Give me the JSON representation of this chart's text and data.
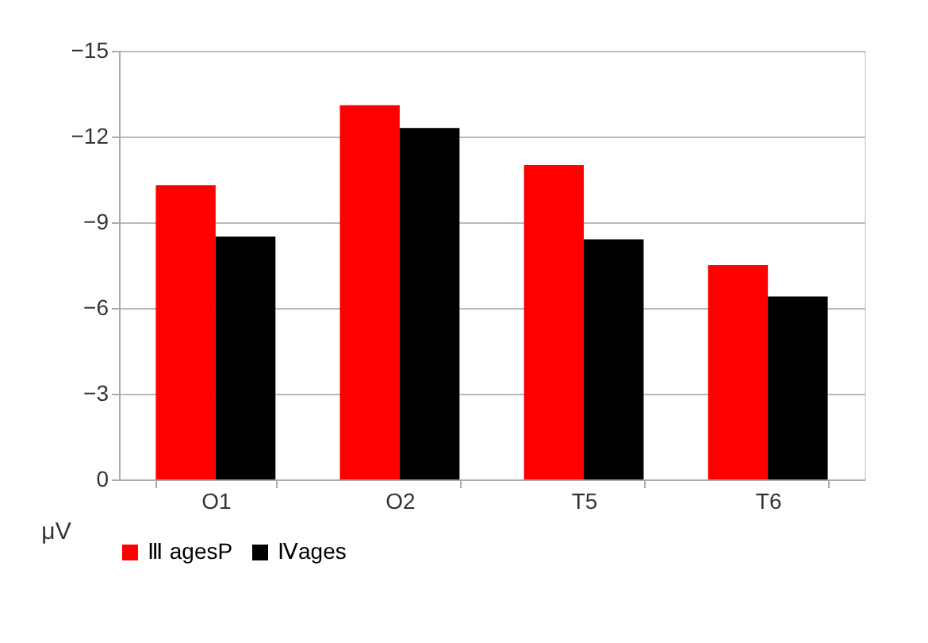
{
  "chart_data": {
    "type": "bar",
    "ylabel": "μV",
    "categories": [
      "O1",
      "O2",
      "T5",
      "T6"
    ],
    "series": [
      {
        "name": "Ⅲ agesP",
        "color": "#ff0000",
        "values": [
          -10.3,
          -13.1,
          -11.0,
          -7.5
        ]
      },
      {
        "name": "Ⅳages",
        "color": "#000000",
        "values": [
          -8.5,
          -12.3,
          -8.4,
          -6.4
        ]
      }
    ],
    "ylim": [
      0,
      -15
    ],
    "yticks": [
      0,
      -3,
      -6,
      -9,
      -12,
      -15
    ],
    "grid": "y",
    "legend": "bottom"
  }
}
